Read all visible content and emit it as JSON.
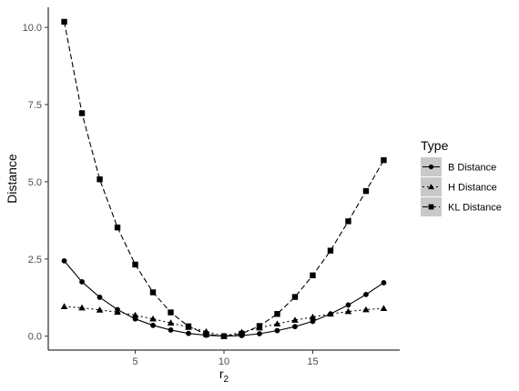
{
  "chart_data": {
    "type": "line",
    "xlabel_base": "r",
    "xlabel_sub": "2",
    "ylabel": "Distance",
    "xlim": [
      0.1,
      19.9
    ],
    "ylim": [
      -0.45,
      10.65
    ],
    "xticks": [
      5,
      10,
      15
    ],
    "yticks": [
      0.0,
      2.5,
      5.0,
      7.5,
      10.0
    ],
    "ytick_labels": [
      "0.0",
      "2.5",
      "5.0",
      "7.5",
      "10.0"
    ],
    "grid": false,
    "legend": {
      "title": "Type",
      "placement": "right"
    },
    "x": [
      1,
      2,
      3,
      4,
      5,
      6,
      7,
      8,
      9,
      10,
      11,
      12,
      13,
      14,
      15,
      16,
      17,
      18,
      19
    ],
    "series": [
      {
        "name": "B Distance",
        "marker": "circle",
        "dash": "solid",
        "values": [
          2.44,
          1.76,
          1.26,
          0.86,
          0.56,
          0.35,
          0.2,
          0.09,
          0.03,
          0.0,
          0.02,
          0.08,
          0.18,
          0.31,
          0.48,
          0.72,
          1.01,
          1.35,
          1.73
        ]
      },
      {
        "name": "H Distance",
        "marker": "triangle",
        "dash": "dotted",
        "values": [
          0.96,
          0.92,
          0.85,
          0.78,
          0.68,
          0.56,
          0.43,
          0.29,
          0.15,
          0.0,
          0.13,
          0.27,
          0.4,
          0.52,
          0.62,
          0.72,
          0.8,
          0.86,
          0.9
        ]
      },
      {
        "name": "KL Distance",
        "marker": "square",
        "dash": "dashed",
        "values": [
          10.18,
          7.22,
          5.08,
          3.52,
          2.32,
          1.42,
          0.77,
          0.32,
          0.06,
          0.0,
          0.08,
          0.33,
          0.72,
          1.27,
          1.97,
          2.77,
          3.72,
          4.7,
          5.7
        ]
      }
    ]
  }
}
